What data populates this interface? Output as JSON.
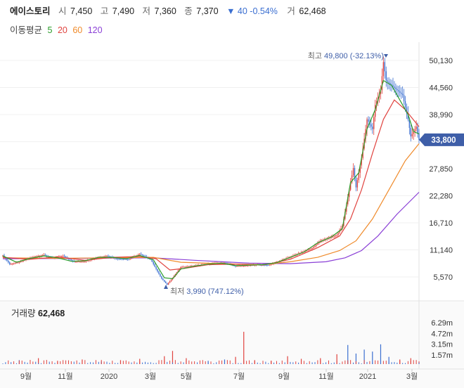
{
  "header": {
    "name": "에이스토리",
    "open_label": "시",
    "open": "7,450",
    "high_label": "고",
    "high": "7,490",
    "low_label": "저",
    "low": "7,360",
    "close_label": "종",
    "close": "7,370",
    "change": "▼ 40 -0.54%",
    "volume_label": "거",
    "volume": "62,468"
  },
  "moving_average": {
    "label": "이동평균",
    "periods": [
      {
        "label": "5",
        "color": "#2a9d2a"
      },
      {
        "label": "20",
        "color": "#e0433f"
      },
      {
        "label": "60",
        "color": "#ef8a2a"
      },
      {
        "label": "120",
        "color": "#8a3fd6"
      }
    ]
  },
  "volume_panel": {
    "label": "거래량",
    "value": "62,468"
  },
  "chart_data": {
    "type": "candlestick",
    "price_ticks": [
      "50,130",
      "44,560",
      "38,990",
      "33,410",
      "27,850",
      "22,280",
      "16,710",
      "11,140",
      "5,570"
    ],
    "price_tick_values": [
      50130,
      44560,
      38990,
      33410,
      27850,
      22280,
      16710,
      11140,
      5570
    ],
    "current_price": "33,800",
    "current_price_value": 33800,
    "annotation_high": {
      "label": "최고",
      "value": "49,800",
      "pct": "(-32.13%)"
    },
    "annotation_low": {
      "label": "최저",
      "value": "3,990",
      "pct": "(747.12%)"
    },
    "volume_ticks": [
      "6.29m",
      "4.72m",
      "3.15m",
      "1.57m"
    ],
    "volume_tick_values": [
      6290000,
      4720000,
      3150000,
      1570000
    ],
    "x_labels": [
      "9월",
      "11월",
      "2020",
      "3월",
      "5월",
      "7월",
      "9월",
      "11월",
      "2021",
      "3월"
    ],
    "price_path": [
      [
        0,
        10000
      ],
      [
        5,
        8200
      ],
      [
        12,
        8600
      ],
      [
        18,
        9300
      ],
      [
        24,
        9800
      ],
      [
        30,
        10100
      ],
      [
        36,
        9400
      ],
      [
        44,
        9900
      ],
      [
        52,
        8700
      ],
      [
        60,
        8800
      ],
      [
        68,
        9500
      ],
      [
        76,
        9900
      ],
      [
        84,
        9300
      ],
      [
        92,
        9200
      ],
      [
        100,
        10300
      ],
      [
        108,
        9200
      ],
      [
        116,
        5200
      ],
      [
        120,
        3990
      ],
      [
        124,
        5400
      ],
      [
        130,
        7600
      ],
      [
        138,
        7800
      ],
      [
        146,
        8100
      ],
      [
        154,
        8400
      ],
      [
        162,
        8500
      ],
      [
        170,
        7800
      ],
      [
        178,
        7900
      ],
      [
        186,
        8100
      ],
      [
        194,
        8000
      ],
      [
        202,
        8800
      ],
      [
        210,
        9700
      ],
      [
        218,
        10600
      ],
      [
        226,
        11500
      ],
      [
        232,
        13000
      ],
      [
        238,
        13600
      ],
      [
        244,
        14200
      ],
      [
        248,
        16000
      ],
      [
        252,
        22000
      ],
      [
        256,
        28000
      ],
      [
        258,
        24000
      ],
      [
        262,
        30000
      ],
      [
        266,
        38000
      ],
      [
        270,
        36000
      ],
      [
        272,
        41000
      ],
      [
        276,
        44000
      ],
      [
        278,
        49800
      ],
      [
        280,
        46000
      ],
      [
        284,
        45000
      ],
      [
        288,
        44000
      ],
      [
        292,
        43000
      ],
      [
        296,
        38000
      ],
      [
        298,
        34500
      ],
      [
        302,
        36500
      ],
      [
        304,
        33800
      ]
    ],
    "ma5_path": [
      [
        0,
        9900
      ],
      [
        10,
        8600
      ],
      [
        20,
        9400
      ],
      [
        30,
        9900
      ],
      [
        40,
        9500
      ],
      [
        50,
        8800
      ],
      [
        60,
        8900
      ],
      [
        70,
        9600
      ],
      [
        80,
        9600
      ],
      [
        90,
        9300
      ],
      [
        100,
        10000
      ],
      [
        110,
        9100
      ],
      [
        118,
        5400
      ],
      [
        124,
        5200
      ],
      [
        130,
        7200
      ],
      [
        140,
        7800
      ],
      [
        150,
        8200
      ],
      [
        160,
        8400
      ],
      [
        170,
        7900
      ],
      [
        180,
        8000
      ],
      [
        190,
        8100
      ],
      [
        200,
        8500
      ],
      [
        210,
        9600
      ],
      [
        220,
        10700
      ],
      [
        230,
        12600
      ],
      [
        240,
        13800
      ],
      [
        248,
        15500
      ],
      [
        254,
        25000
      ],
      [
        260,
        27000
      ],
      [
        266,
        36000
      ],
      [
        272,
        40000
      ],
      [
        278,
        46000
      ],
      [
        284,
        45000
      ],
      [
        290,
        42000
      ],
      [
        296,
        39000
      ],
      [
        300,
        35500
      ],
      [
        304,
        35000
      ]
    ],
    "ma20_path": [
      [
        0,
        9600
      ],
      [
        20,
        9200
      ],
      [
        40,
        9700
      ],
      [
        60,
        9000
      ],
      [
        80,
        9600
      ],
      [
        100,
        9800
      ],
      [
        112,
        9300
      ],
      [
        122,
        7000
      ],
      [
        132,
        7300
      ],
      [
        150,
        8100
      ],
      [
        170,
        8200
      ],
      [
        190,
        8000
      ],
      [
        210,
        9200
      ],
      [
        230,
        11600
      ],
      [
        246,
        14000
      ],
      [
        254,
        17500
      ],
      [
        262,
        23500
      ],
      [
        270,
        31000
      ],
      [
        278,
        38000
      ],
      [
        286,
        42000
      ],
      [
        294,
        40000
      ],
      [
        304,
        36500
      ]
    ],
    "ma60_path": [
      [
        0,
        9500
      ],
      [
        40,
        9400
      ],
      [
        80,
        9500
      ],
      [
        110,
        9600
      ],
      [
        130,
        8600
      ],
      [
        160,
        8300
      ],
      [
        190,
        8100
      ],
      [
        210,
        8700
      ],
      [
        230,
        9600
      ],
      [
        246,
        11000
      ],
      [
        258,
        13000
      ],
      [
        270,
        17500
      ],
      [
        282,
        23500
      ],
      [
        294,
        29500
      ],
      [
        304,
        33000
      ]
    ],
    "ma120_path": [
      [
        0,
        9300
      ],
      [
        60,
        9400
      ],
      [
        110,
        9500
      ],
      [
        140,
        9000
      ],
      [
        180,
        8400
      ],
      [
        210,
        8300
      ],
      [
        236,
        8700
      ],
      [
        250,
        9500
      ],
      [
        262,
        11000
      ],
      [
        274,
        14000
      ],
      [
        288,
        18500
      ],
      [
        304,
        23000
      ]
    ],
    "volume_spikes": [
      [
        12,
        0.6
      ],
      [
        26,
        0.9
      ],
      [
        40,
        0.5
      ],
      [
        58,
        0.7
      ],
      [
        72,
        0.4
      ],
      [
        86,
        0.6
      ],
      [
        100,
        0.8
      ],
      [
        118,
        1.2
      ],
      [
        124,
        2.0
      ],
      [
        134,
        0.9
      ],
      [
        150,
        0.5
      ],
      [
        162,
        0.7
      ],
      [
        170,
        1.1
      ],
      [
        176,
        4.9
      ],
      [
        184,
        0.6
      ],
      [
        196,
        0.5
      ],
      [
        208,
        1.2
      ],
      [
        218,
        0.8
      ],
      [
        232,
        0.9
      ],
      [
        244,
        1.5
      ],
      [
        252,
        2.9
      ],
      [
        258,
        1.6
      ],
      [
        264,
        2.2
      ],
      [
        270,
        1.9
      ],
      [
        276,
        3.0
      ],
      [
        282,
        1.1
      ],
      [
        290,
        0.7
      ],
      [
        298,
        0.9
      ],
      [
        304,
        0.4
      ]
    ]
  }
}
